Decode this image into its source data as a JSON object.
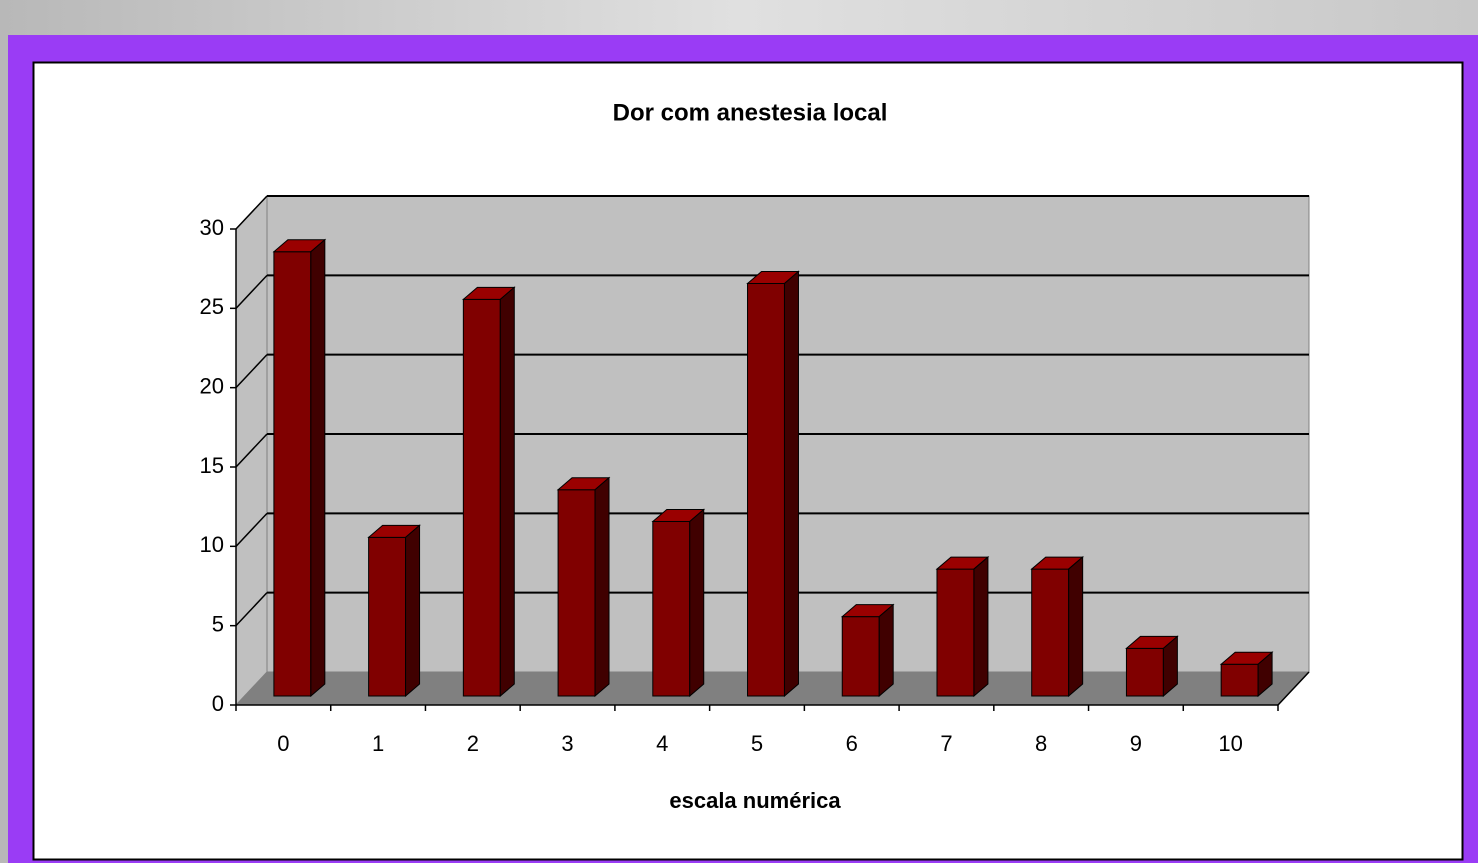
{
  "chart_data": {
    "type": "bar",
    "title": "Dor com anestesia local",
    "x_label": "escala numérica",
    "categories": [
      "0",
      "1",
      "2",
      "3",
      "4",
      "5",
      "6",
      "7",
      "8",
      "9",
      "10"
    ],
    "values": [
      28,
      10,
      25,
      13,
      11,
      26,
      5,
      8,
      8,
      3,
      2
    ],
    "color": "#800000",
    "ylim": [
      0,
      30
    ],
    "yticks": [
      0,
      5,
      10,
      15,
      20,
      25,
      30
    ],
    "grid": true
  }
}
